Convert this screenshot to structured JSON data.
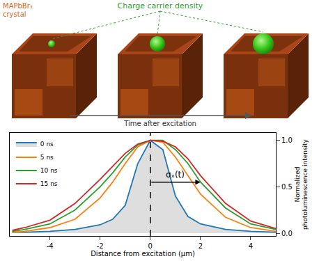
{
  "illustration": {
    "crystal_label": "MAPbBr₃ crystal",
    "density_label": "Charge carrier density",
    "time_label": "Time after excitation"
  },
  "chart_data": {
    "type": "line",
    "x_label": "Distance from excitation (µm)",
    "y_label": "Normalized photoluminescence intensity",
    "x": [
      -5.5,
      -5,
      -4,
      -3,
      -2,
      -1.5,
      -1,
      -0.5,
      0,
      0.5,
      1,
      1.5,
      2,
      3,
      4,
      5
    ],
    "series": [
      {
        "name": "0 ns",
        "color": "#1f77b4",
        "values": [
          0.01,
          0.01,
          0.02,
          0.04,
          0.09,
          0.15,
          0.3,
          0.75,
          1.0,
          0.9,
          0.4,
          0.18,
          0.1,
          0.04,
          0.02,
          0.01
        ]
      },
      {
        "name": "5 ns",
        "color": "#ff7f0e",
        "values": [
          0.01,
          0.02,
          0.06,
          0.15,
          0.38,
          0.55,
          0.75,
          0.93,
          1.0,
          0.98,
          0.82,
          0.62,
          0.42,
          0.17,
          0.06,
          0.02
        ]
      },
      {
        "name": "10 ns",
        "color": "#2ca02c",
        "values": [
          0.02,
          0.04,
          0.1,
          0.25,
          0.5,
          0.65,
          0.82,
          0.95,
          1.0,
          1.0,
          0.9,
          0.75,
          0.55,
          0.27,
          0.1,
          0.04
        ]
      },
      {
        "name": "15 ns",
        "color": "#d62728",
        "values": [
          0.03,
          0.06,
          0.14,
          0.32,
          0.58,
          0.72,
          0.86,
          0.96,
          1.0,
          0.99,
          0.93,
          0.8,
          0.62,
          0.32,
          0.13,
          0.05
        ]
      }
    ],
    "xlim": [
      -5.6,
      5
    ],
    "ylim": [
      -0.03,
      1.08
    ],
    "xticks": [
      -4,
      -2,
      0,
      2,
      4
    ],
    "yticks": [
      {
        "value": 0,
        "label": "0.0"
      },
      {
        "value": 0.5,
        "label": "0.5"
      },
      {
        "value": 1,
        "label": "1.0"
      }
    ],
    "reference_line": {
      "x": 0,
      "line_style": "dashed"
    },
    "annotations": [
      {
        "text": "σₓ(t)",
        "x": 0,
        "x_end": 2,
        "y": 0.55
      }
    ],
    "legend": "upper left",
    "grid": false
  }
}
